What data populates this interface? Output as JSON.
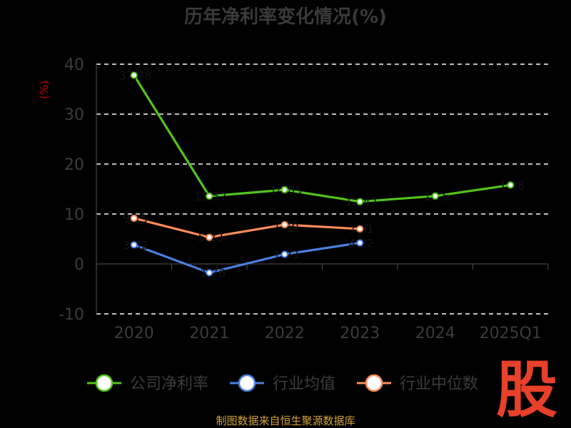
{
  "chart_data": {
    "type": "line",
    "title": "历年净利率变化情况(%)",
    "ylabel": "(%)",
    "categories": [
      "2020",
      "2021",
      "2022",
      "2023",
      "2024",
      "2025Q1"
    ],
    "ylim": [
      -10,
      40
    ],
    "yticks": [
      "40",
      "30",
      "20",
      "10",
      "0",
      "-10"
    ],
    "grid": true,
    "legend_position": "bottom",
    "series": [
      {
        "name": "公司净利率",
        "color": "#52c41a",
        "values": [
          37.78,
          13.57,
          14.85,
          12.47,
          13.6,
          15.8
        ]
      },
      {
        "name": "行业均值",
        "color": "#4a7fe0",
        "values": [
          3.82,
          -1.76,
          1.93,
          4.22,
          null,
          null
        ]
      },
      {
        "name": "行业中位数",
        "color": "#ff8c5a",
        "values": [
          9.15,
          5.33,
          7.86,
          7.01,
          null,
          null
        ]
      }
    ]
  },
  "footer": {
    "source": "制图数据来自恒生聚源数据库",
    "logo_text": "股"
  }
}
